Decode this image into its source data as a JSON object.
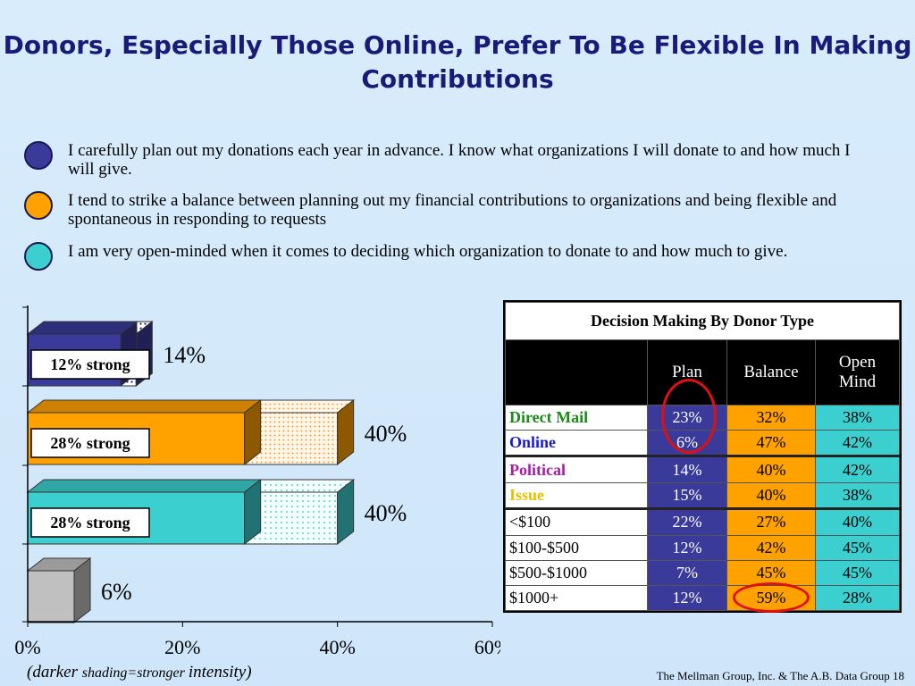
{
  "title": "Donors, Especially Those Online, Prefer To Be Flexible In Making Contributions",
  "legend": [
    {
      "color": "#3a3a9a",
      "text": "I carefully plan out my donations each year in advance. I know what organizations I will donate to and how much I will give."
    },
    {
      "color": "#ffa200",
      "text": "I tend to strike a balance between planning out my financial contributions to organizations and being flexible and spontaneous in responding to requests"
    },
    {
      "color": "#3ccfcf",
      "text": "I am very open-minded when it comes to deciding which organization to donate to and how much to give."
    }
  ],
  "chart_data": {
    "type": "bar",
    "orientation": "horizontal",
    "stacked": true,
    "x_ticks": [
      "0%",
      "20%",
      "40%",
      "60%"
    ],
    "xlim": [
      0,
      60
    ],
    "bars": [
      {
        "segment_color": "#3a3a9a",
        "strong": 12,
        "total": 14,
        "total_label": "14%",
        "strong_label": "12% strong"
      },
      {
        "segment_color": "#ffa200",
        "strong": 28,
        "total": 40,
        "total_label": "40%",
        "strong_label": "28% strong"
      },
      {
        "segment_color": "#3ccfcf",
        "strong": 28,
        "total": 40,
        "total_label": "40%",
        "strong_label": "28% strong"
      },
      {
        "segment_color": "#c0c0c0",
        "strong": 6,
        "total": 6,
        "total_label": "6%",
        "strong_label": ""
      }
    ],
    "colors": {
      "plan": "#3a3a9a",
      "balance": "#ffa200",
      "open": "#3ccfcf",
      "other": "#c0c0c0"
    }
  },
  "note": {
    "part1": "(darker ",
    "part2": "shading=stronger ",
    "part3": "intensity)"
  },
  "table": {
    "caption": "Decision Making  By Donor Type",
    "columns": [
      "Plan",
      "Balance",
      "Open Mind"
    ],
    "rows": [
      {
        "label": "Direct Mail",
        "color": "#1a8a1a",
        "bold": true,
        "values": [
          "23%",
          "32%",
          "38%"
        ]
      },
      {
        "label": "Online",
        "color": "#1a1ad0",
        "bold": true,
        "values": [
          "6%",
          "47%",
          "42%"
        ]
      },
      {
        "label": "Political",
        "color": "#a020a0",
        "bold": true,
        "values": [
          "14%",
          "40%",
          "42%"
        ]
      },
      {
        "label": "Issue",
        "color": "#e8c000",
        "bold": true,
        "values": [
          "15%",
          "40%",
          "38%"
        ]
      },
      {
        "label": "<$100",
        "color": "#000000",
        "bold": false,
        "values": [
          "22%",
          "27%",
          "40%"
        ]
      },
      {
        "label": "$100-$500",
        "color": "#000000",
        "bold": false,
        "values": [
          "12%",
          "42%",
          "45%"
        ]
      },
      {
        "label": "$500-$1000",
        "color": "#000000",
        "bold": false,
        "values": [
          "7%",
          "45%",
          "45%"
        ]
      },
      {
        "label": "$1000+",
        "color": "#000000",
        "bold": false,
        "values": [
          "12%",
          "59%",
          "28%"
        ]
      }
    ]
  },
  "footer": "The Mellman Group, Inc. & The A.B. Data Group  18"
}
